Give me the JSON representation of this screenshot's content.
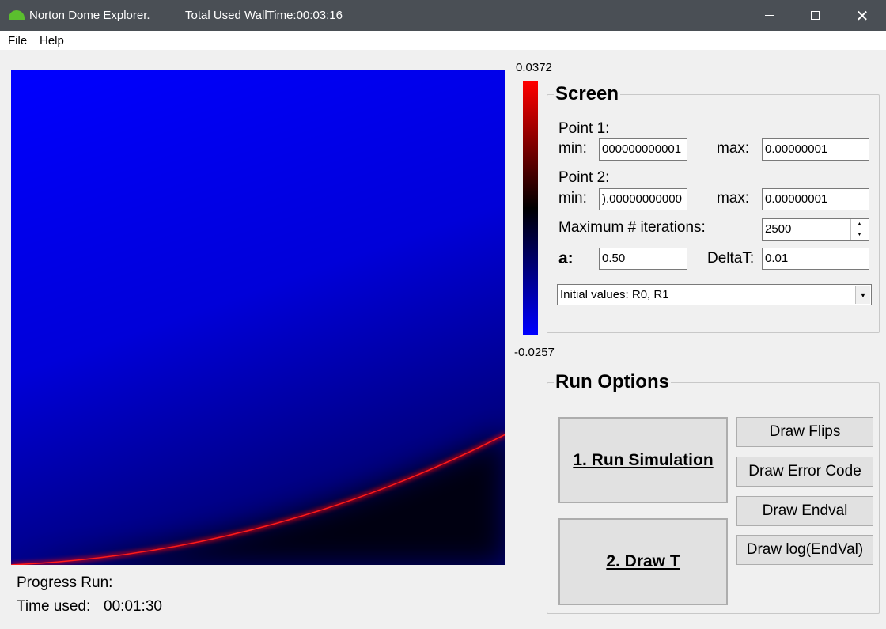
{
  "window": {
    "app_title": "Norton Dome Explorer.",
    "walltime": "Total Used WallTime:00:03:16",
    "controls": {
      "minimize": "minimize-icon",
      "maximize": "maximize-icon",
      "close": "close-icon"
    }
  },
  "menu": {
    "file": "File",
    "help": "Help"
  },
  "colorbar": {
    "max": "0.0372",
    "min": "-0.0257",
    "colors": {
      "high": "#ff0000",
      "mid": "#000000",
      "low": "#0000ff"
    }
  },
  "status": {
    "progress_label": "Progress Run:",
    "time_label": "Time used:",
    "time_value": "00:01:30"
  },
  "screen": {
    "title": "Screen",
    "point1_label": "Point 1:",
    "point1_min_label": "min:",
    "point1_min": "000000000001",
    "point1_max_label": "max:",
    "point1_max": "0.00000001",
    "point2_label": "Point 2:",
    "point2_min_label": "min:",
    "point2_min": ").00000000000",
    "point2_max_label": "max:",
    "point2_max": "0.00000001",
    "iterations_label": "Maximum # iterations:",
    "iterations": "2500",
    "a_label": "a:",
    "a": "0.50",
    "deltat_label": "DeltaT:",
    "deltat": "0.01",
    "initial_values": "Initial values: R0, R1"
  },
  "run_options": {
    "title": "Run Options",
    "run_simulation": "1. Run Simulation",
    "draw_t": "2. Draw T",
    "draw_flips": "Draw Flips",
    "draw_error_code": "Draw Error Code",
    "draw_endval": "Draw Endval",
    "draw_log_endval": "Draw log(EndVal)"
  }
}
